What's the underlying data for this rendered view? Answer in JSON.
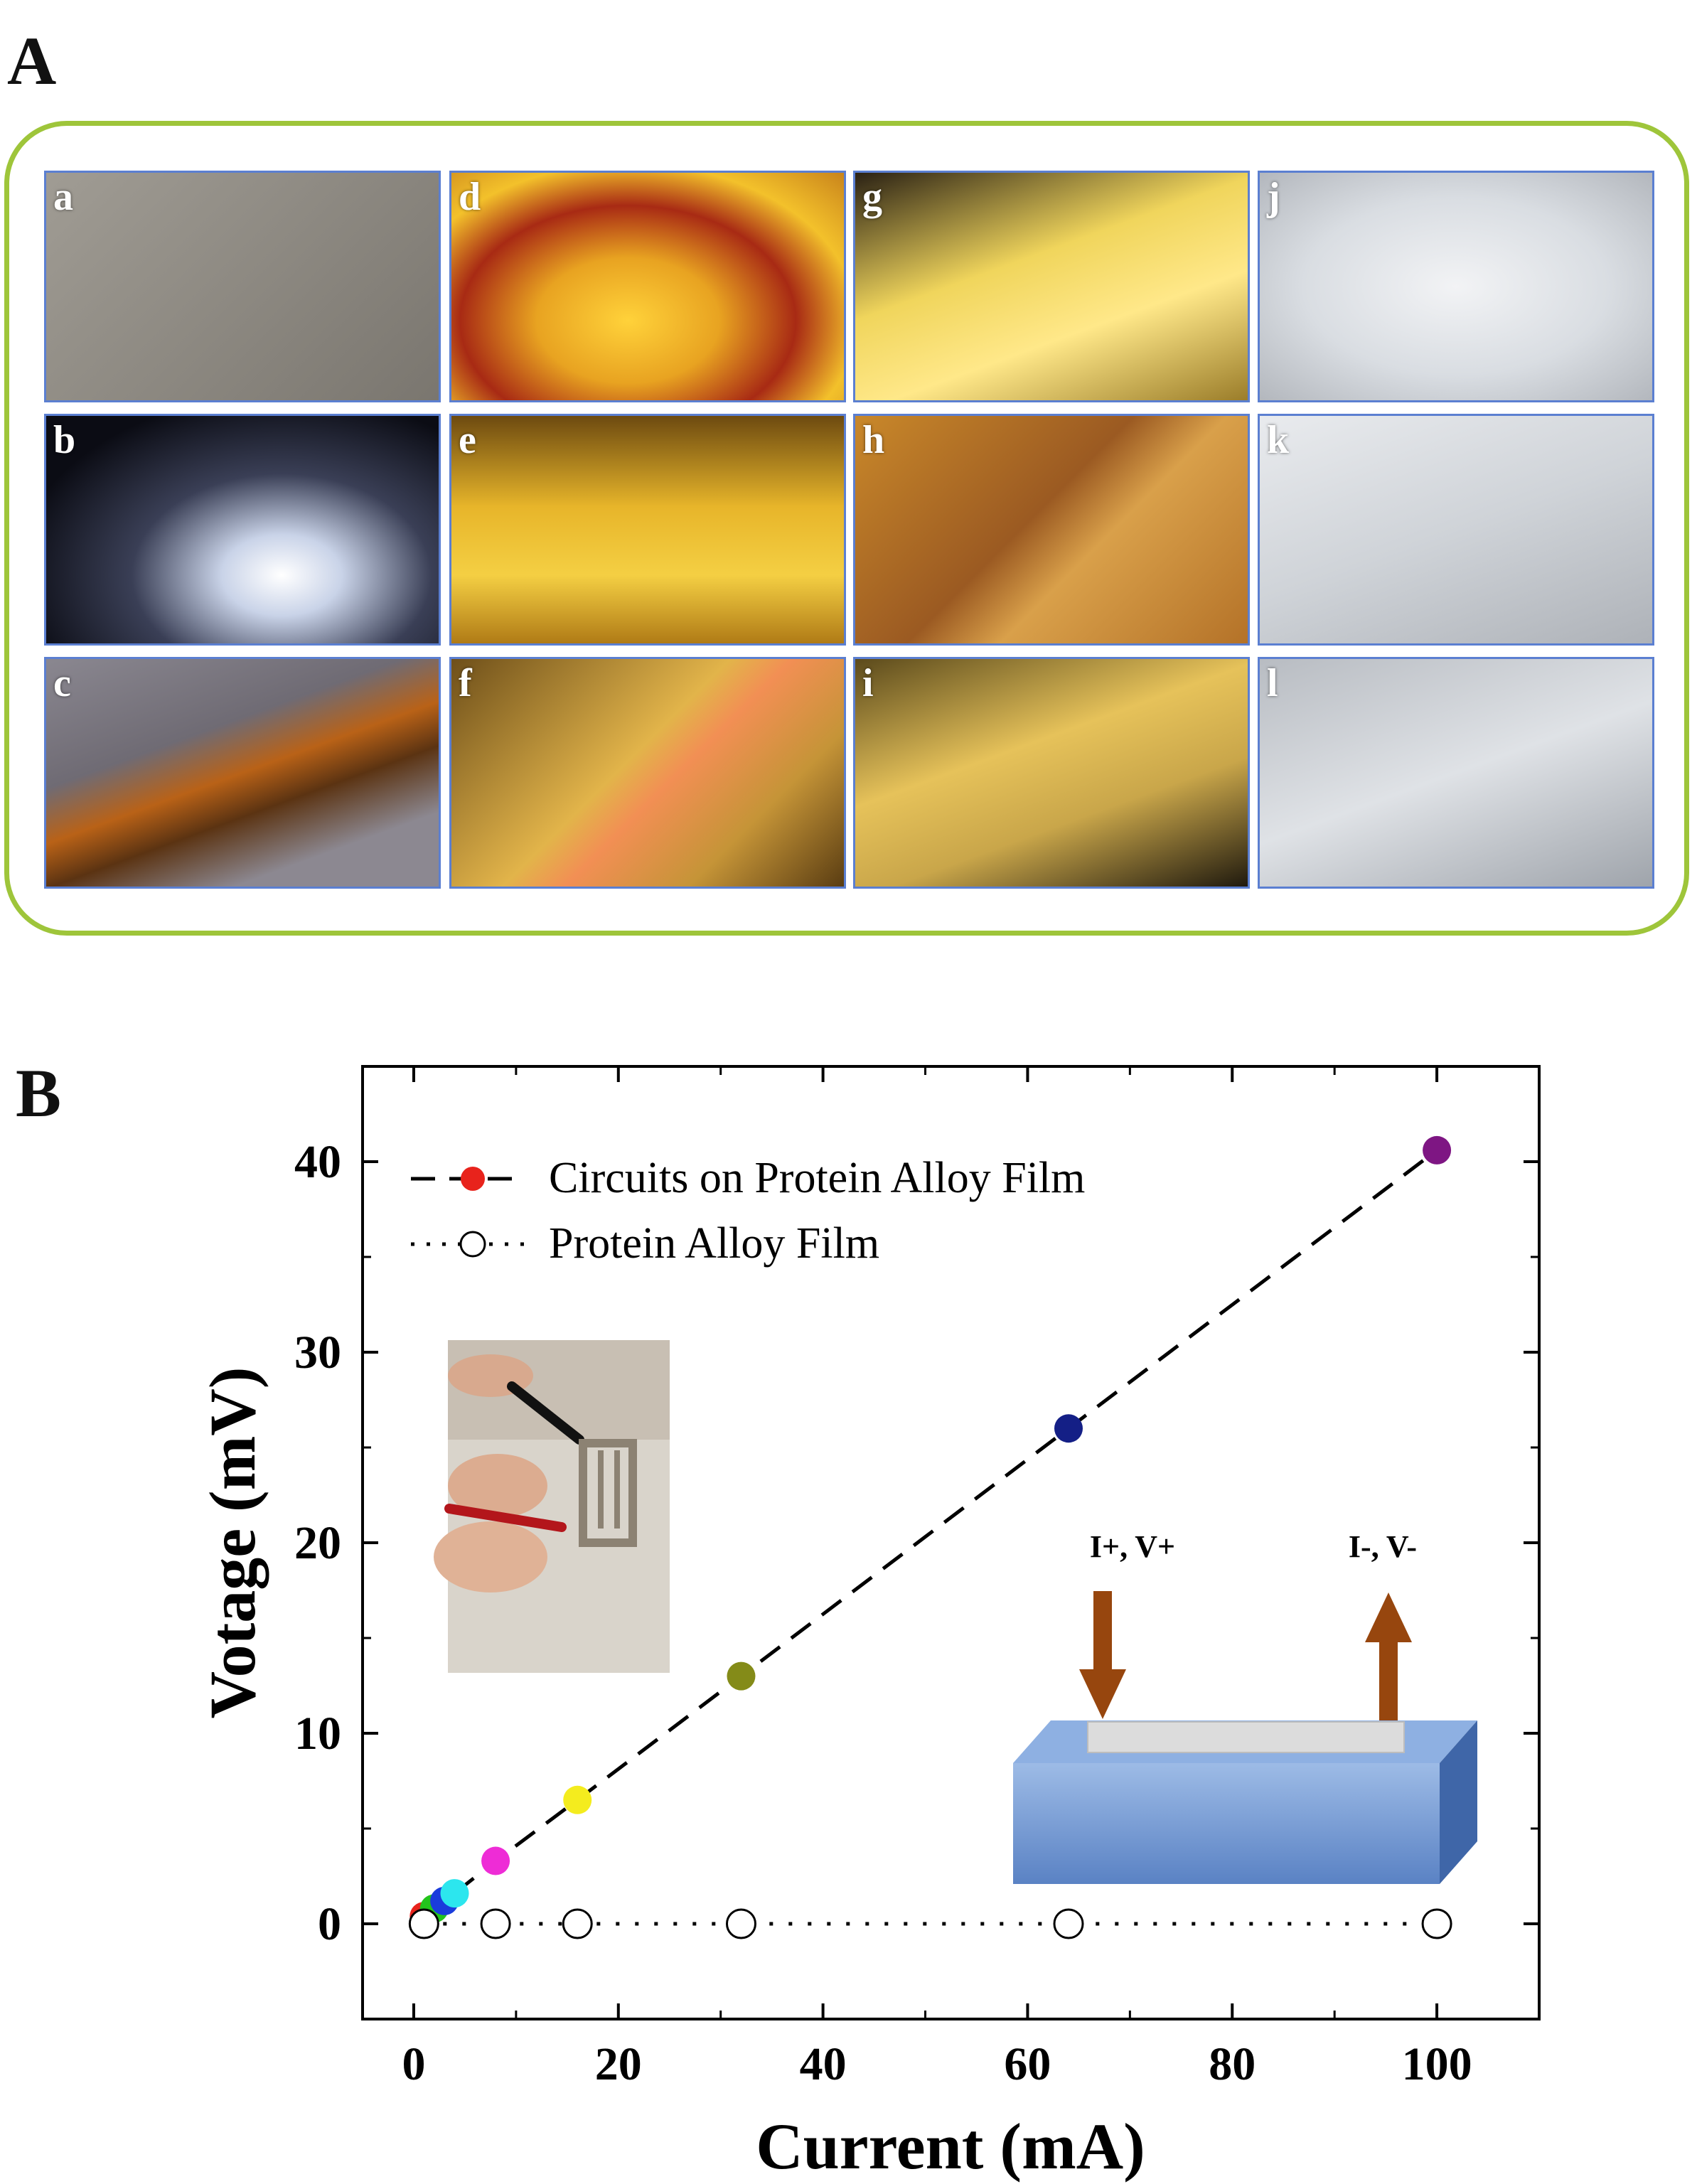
{
  "panel_a": {
    "letter": "A",
    "photos": [
      {
        "label": "a",
        "bg": "linear-gradient(135deg,#a09c94,#7a766f)"
      },
      {
        "label": "b",
        "bg": "radial-gradient(ellipse at 60% 70%,#ffffff 0%,#c9d3e8 18%,#3a3f56 45%,#0b0c14 80%)"
      },
      {
        "label": "c",
        "bg": "linear-gradient(160deg,#8a8790 0%,#6f6b74 35%,#b96217 50%,#5b3312 62%,#8c8891 80%)"
      },
      {
        "label": "d",
        "bg": "radial-gradient(ellipse at 45% 65%,#ffd23a 0%,#e8a321 30%,#a82a14 55%,#f3c12b 75%,#c9841b 100%)"
      },
      {
        "label": "e",
        "bg": "linear-gradient(180deg,#6d4a10 0%,#e7b52a 40%,#f4cf43 70%,#b07b16 100%)"
      },
      {
        "label": "f",
        "bg": "linear-gradient(135deg,#6e4f1a 0%,#e2b44a 45%,#f28f54 55%,#c59437 75%,#5a3d12 100%)"
      },
      {
        "label": "g",
        "bg": "linear-gradient(160deg,#2a2114 0%,#f0d55c 40%,#ffe889 65%,#9b7d2a 100%)"
      },
      {
        "label": "h",
        "bg": "linear-gradient(135deg,#c9882a 0%,#9b5a22 45%,#d9a04a 60%,#b47228 100%)"
      },
      {
        "label": "i",
        "bg": "linear-gradient(160deg,#5b4a1c 0%,#e6c25a 40%,#c9a64a 65%,#201a0e 100%)"
      },
      {
        "label": "j",
        "bg": "radial-gradient(ellipse at 50% 50%,#f2f3f5 0%,#d9dde2 55%,#b3b7bd 100%)"
      },
      {
        "label": "k",
        "bg": "linear-gradient(160deg,#e9ebee 0%,#cfd3d8 50%,#aeb2b8 100%)"
      },
      {
        "label": "l",
        "bg": "linear-gradient(160deg,#b8bcc2 0%,#dfe2e6 50%,#9fa4ab 100%)"
      }
    ]
  },
  "panel_b": {
    "letter": "B"
  },
  "chart_data": {
    "type": "scatter",
    "xlabel": "Current (mA)",
    "ylabel": "Votage (mV)",
    "xlim": [
      -5,
      110
    ],
    "ylim": [
      -5,
      45
    ],
    "xticks": [
      0,
      20,
      40,
      60,
      80,
      100
    ],
    "yticks": [
      0,
      10,
      20,
      30,
      40
    ],
    "series": [
      {
        "name": "Circuits on Protein Alloy Film",
        "line": "dashed",
        "filled": true,
        "points": [
          {
            "x": 1,
            "y": 0.4,
            "color": "#e8231c"
          },
          {
            "x": 2,
            "y": 0.8,
            "color": "#23c41c"
          },
          {
            "x": 3,
            "y": 1.2,
            "color": "#1a3cdc"
          },
          {
            "x": 4,
            "y": 1.6,
            "color": "#2ce6ee"
          },
          {
            "x": 8,
            "y": 3.3,
            "color": "#ee2cd6"
          },
          {
            "x": 16,
            "y": 6.5,
            "color": "#f4ec1e"
          },
          {
            "x": 32,
            "y": 13,
            "color": "#848b18"
          },
          {
            "x": 64,
            "y": 26,
            "color": "#141f86"
          },
          {
            "x": 100,
            "y": 40.6,
            "color": "#7e1683"
          }
        ]
      },
      {
        "name": "Protein Alloy Film",
        "line": "dotted",
        "filled": false,
        "points": [
          {
            "x": 1,
            "y": 0
          },
          {
            "x": 8,
            "y": 0
          },
          {
            "x": 16,
            "y": 0
          },
          {
            "x": 32,
            "y": 0
          },
          {
            "x": 64,
            "y": 0
          },
          {
            "x": 100,
            "y": 0
          }
        ]
      }
    ],
    "legend_position": "top-left",
    "inset_labels": {
      "plus": "I+, V+",
      "minus": "I-, V-"
    },
    "colors": {
      "arrow": "#97460e",
      "block_front": "#6f93cf",
      "block_top": "#8eb0e2",
      "block_side": "#3f66a8",
      "electrode": "#dcdcdc"
    }
  }
}
